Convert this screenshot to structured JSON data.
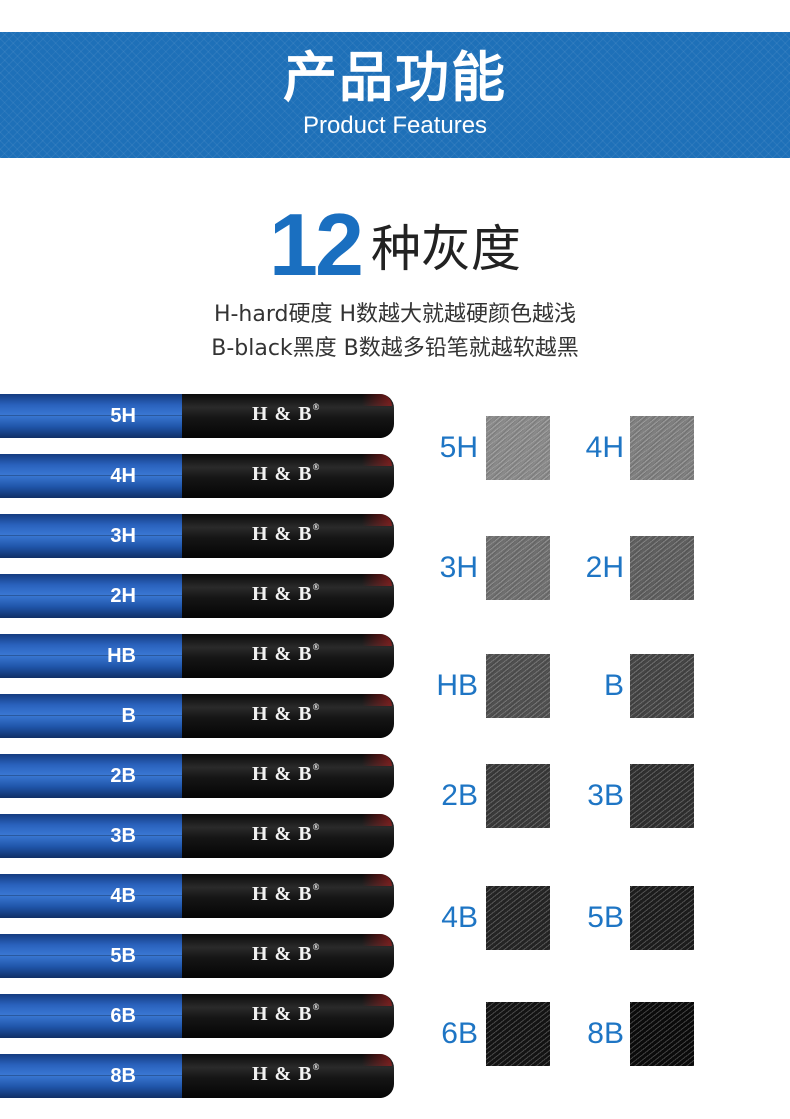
{
  "banner": {
    "title": "产品功能",
    "subtitle": "Product Features"
  },
  "heading": {
    "number": "12",
    "text": "种灰度"
  },
  "description": {
    "line1": "H-hard硬度 H数越大就越硬颜色越浅",
    "line2": "B-black黑度 B数越多铅笔就越软越黑"
  },
  "brand": {
    "name": "H & B",
    "mark": "®"
  },
  "pencils": [
    "5H",
    "4H",
    "3H",
    "2H",
    "HB",
    "B",
    "2B",
    "3B",
    "4B",
    "5B",
    "6B",
    "8B"
  ],
  "swatches": [
    {
      "label": "5H",
      "color": "#8a8a8a"
    },
    {
      "label": "4H",
      "color": "#7f7f7f"
    },
    {
      "label": "3H",
      "color": "#6f6f6f"
    },
    {
      "label": "2H",
      "color": "#5f5f5f"
    },
    {
      "label": "HB",
      "color": "#505050"
    },
    {
      "label": "B",
      "color": "#454545"
    },
    {
      "label": "2B",
      "color": "#3a3a3a"
    },
    {
      "label": "3B",
      "color": "#303030"
    },
    {
      "label": "4B",
      "color": "#252525"
    },
    {
      "label": "5B",
      "color": "#1d1d1d"
    },
    {
      "label": "6B",
      "color": "#141414"
    },
    {
      "label": "8B",
      "color": "#0b0b0b"
    }
  ]
}
